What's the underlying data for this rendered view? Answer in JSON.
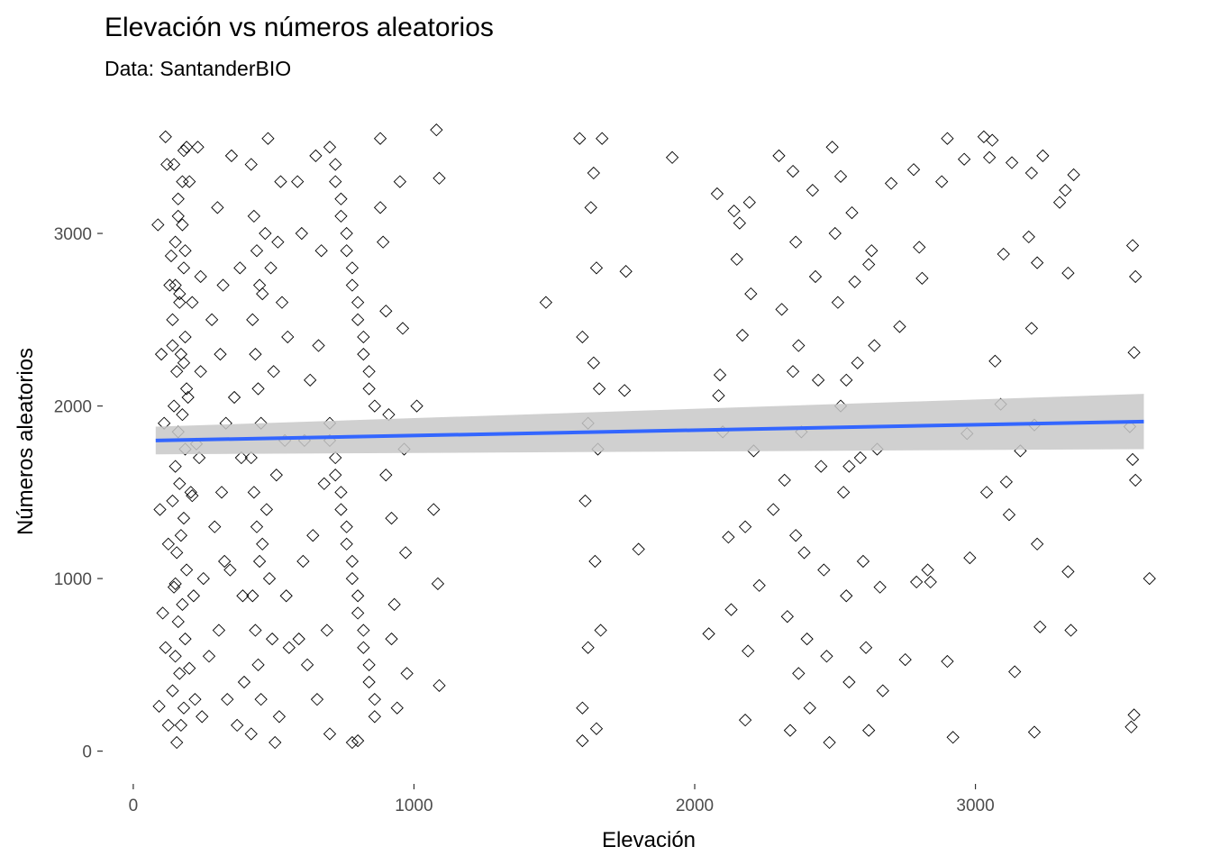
{
  "chart_data": {
    "type": "scatter",
    "title": "Elevación vs números aleatorios",
    "subtitle": "Data: SantanderBIO",
    "xlabel": "Elevación",
    "ylabel": "Números aleatorios",
    "xlim": [
      -250,
      3730
    ],
    "ylim": [
      -190,
      3700
    ],
    "xticks": [
      0,
      1000,
      2000,
      3000
    ],
    "xtick_labels": [
      "0",
      "1000",
      "2000",
      "3000"
    ],
    "yticks": [
      0,
      1000,
      2000,
      3000
    ],
    "ytick_labels": [
      "0",
      "1000",
      "2000",
      "3000"
    ],
    "grid": false,
    "legend": "none",
    "marker": "open diamond",
    "colors": {
      "points": "#000000",
      "fit_line": "#3366ff",
      "confidence_band": "#c8c8c8"
    },
    "trend": {
      "method": "linear",
      "x_start": 80,
      "x_end": 3600,
      "y_start": 1800,
      "y_end": 1910,
      "band_lower_start": 1720,
      "band_upper_start": 1880,
      "band_lower_end": 1750,
      "band_upper_end": 2070
    },
    "points": [
      [
        160,
        3200
      ],
      [
        175,
        3050
      ],
      [
        150,
        2950
      ],
      [
        180,
        2800
      ],
      [
        165,
        2650
      ],
      [
        140,
        2500
      ],
      [
        185,
        2400
      ],
      [
        170,
        2300
      ],
      [
        155,
        2200
      ],
      [
        190,
        2100
      ],
      [
        145,
        2000
      ],
      [
        175,
        1950
      ],
      [
        160,
        1850
      ],
      [
        185,
        1750
      ],
      [
        150,
        1650
      ],
      [
        165,
        1550
      ],
      [
        140,
        1450
      ],
      [
        180,
        1350
      ],
      [
        170,
        1250
      ],
      [
        155,
        1150
      ],
      [
        190,
        1050
      ],
      [
        145,
        950
      ],
      [
        175,
        850
      ],
      [
        160,
        750
      ],
      [
        185,
        650
      ],
      [
        150,
        550
      ],
      [
        165,
        450
      ],
      [
        140,
        350
      ],
      [
        180,
        250
      ],
      [
        170,
        150
      ],
      [
        155,
        50
      ],
      [
        190,
        3500
      ],
      [
        145,
        3400
      ],
      [
        175,
        3300
      ],
      [
        160,
        3100
      ],
      [
        185,
        2900
      ],
      [
        150,
        2700
      ],
      [
        165,
        2600
      ],
      [
        140,
        2350
      ],
      [
        180,
        2250
      ],
      [
        120,
        3400
      ],
      [
        130,
        2700
      ],
      [
        110,
        1900
      ],
      [
        125,
        1200
      ],
      [
        115,
        600
      ],
      [
        200,
        3300
      ],
      [
        210,
        2600
      ],
      [
        205,
        1500
      ],
      [
        215,
        900
      ],
      [
        220,
        300
      ],
      [
        230,
        3500
      ],
      [
        240,
        2200
      ],
      [
        235,
        1700
      ],
      [
        250,
        1000
      ],
      [
        245,
        200
      ],
      [
        100,
        2300
      ],
      [
        95,
        1400
      ],
      [
        105,
        800
      ],
      [
        88,
        3050
      ],
      [
        92,
        260
      ],
      [
        115,
        3560
      ],
      [
        125,
        150
      ],
      [
        180,
        3480
      ],
      [
        195,
        2050
      ],
      [
        210,
        1480
      ],
      [
        135,
        2870
      ],
      [
        150,
        970
      ],
      [
        200,
        480
      ],
      [
        225,
        1780
      ],
      [
        240,
        2750
      ],
      [
        300,
        3150
      ],
      [
        320,
        2700
      ],
      [
        310,
        2300
      ],
      [
        330,
        1900
      ],
      [
        315,
        1500
      ],
      [
        325,
        1100
      ],
      [
        305,
        700
      ],
      [
        335,
        300
      ],
      [
        280,
        2500
      ],
      [
        290,
        1300
      ],
      [
        270,
        550
      ],
      [
        350,
        3450
      ],
      [
        360,
        2050
      ],
      [
        345,
        1050
      ],
      [
        370,
        150
      ],
      [
        380,
        2800
      ],
      [
        385,
        1700
      ],
      [
        390,
        900
      ],
      [
        395,
        400
      ],
      [
        420,
        3400
      ],
      [
        430,
        3100
      ],
      [
        440,
        2900
      ],
      [
        450,
        2700
      ],
      [
        425,
        2500
      ],
      [
        435,
        2300
      ],
      [
        445,
        2100
      ],
      [
        455,
        1900
      ],
      [
        420,
        1700
      ],
      [
        430,
        1500
      ],
      [
        440,
        1300
      ],
      [
        450,
        1100
      ],
      [
        425,
        900
      ],
      [
        435,
        700
      ],
      [
        445,
        500
      ],
      [
        455,
        300
      ],
      [
        420,
        100
      ],
      [
        480,
        3550
      ],
      [
        490,
        2800
      ],
      [
        500,
        2200
      ],
      [
        510,
        1600
      ],
      [
        485,
        1000
      ],
      [
        495,
        650
      ],
      [
        505,
        50
      ],
      [
        470,
        3000
      ],
      [
        475,
        1400
      ],
      [
        530,
        2600
      ],
      [
        540,
        1800
      ],
      [
        545,
        900
      ],
      [
        550,
        2400
      ],
      [
        555,
        600
      ],
      [
        525,
        3300
      ],
      [
        520,
        200
      ],
      [
        460,
        2650
      ],
      [
        460,
        1200
      ],
      [
        515,
        2950
      ],
      [
        700,
        3500
      ],
      [
        720,
        3300
      ],
      [
        740,
        3100
      ],
      [
        760,
        2900
      ],
      [
        780,
        2700
      ],
      [
        800,
        2500
      ],
      [
        820,
        2300
      ],
      [
        840,
        2100
      ],
      [
        700,
        1900
      ],
      [
        720,
        1700
      ],
      [
        740,
        1500
      ],
      [
        760,
        1300
      ],
      [
        780,
        1100
      ],
      [
        800,
        900
      ],
      [
        820,
        700
      ],
      [
        840,
        500
      ],
      [
        860,
        300
      ],
      [
        700,
        100
      ],
      [
        720,
        3400
      ],
      [
        740,
        3200
      ],
      [
        760,
        3000
      ],
      [
        780,
        2800
      ],
      [
        800,
        2600
      ],
      [
        820,
        2400
      ],
      [
        840,
        2200
      ],
      [
        860,
        2000
      ],
      [
        700,
        1800
      ],
      [
        720,
        1600
      ],
      [
        740,
        1400
      ],
      [
        760,
        1200
      ],
      [
        780,
        1000
      ],
      [
        800,
        800
      ],
      [
        820,
        600
      ],
      [
        840,
        400
      ],
      [
        860,
        200
      ],
      [
        780,
        50
      ],
      [
        800,
        60
      ],
      [
        650,
        3450
      ],
      [
        660,
        2350
      ],
      [
        640,
        1250
      ],
      [
        655,
        300
      ],
      [
        670,
        2900
      ],
      [
        680,
        1550
      ],
      [
        690,
        700
      ],
      [
        600,
        3000
      ],
      [
        610,
        1800
      ],
      [
        620,
        500
      ],
      [
        630,
        2150
      ],
      [
        585,
        3300
      ],
      [
        590,
        650
      ],
      [
        605,
        1100
      ],
      [
        880,
        3550
      ],
      [
        890,
        2950
      ],
      [
        900,
        2550
      ],
      [
        910,
        1950
      ],
      [
        920,
        1350
      ],
      [
        930,
        850
      ],
      [
        940,
        250
      ],
      [
        950,
        3300
      ],
      [
        960,
        2450
      ],
      [
        965,
        1750
      ],
      [
        970,
        1150
      ],
      [
        975,
        450
      ],
      [
        880,
        3150
      ],
      [
        900,
        1600
      ],
      [
        920,
        650
      ],
      [
        1010,
        2000
      ],
      [
        1070,
        1400
      ],
      [
        1090,
        380
      ],
      [
        1080,
        3600
      ],
      [
        1090,
        3320
      ],
      [
        1085,
        970
      ],
      [
        1470,
        2600
      ],
      [
        1590,
        3550
      ],
      [
        1600,
        2400
      ],
      [
        1610,
        1450
      ],
      [
        1620,
        600
      ],
      [
        1600,
        250
      ],
      [
        1640,
        3350
      ],
      [
        1650,
        2800
      ],
      [
        1660,
        2100
      ],
      [
        1655,
        1750
      ],
      [
        1645,
        1100
      ],
      [
        1665,
        700
      ],
      [
        1650,
        130
      ],
      [
        1670,
        3550
      ],
      [
        1630,
        3150
      ],
      [
        1640,
        2250
      ],
      [
        1620,
        1900
      ],
      [
        1600,
        60
      ],
      [
        1755,
        2780
      ],
      [
        1750,
        2090
      ],
      [
        1800,
        1170
      ],
      [
        1920,
        3440
      ],
      [
        2050,
        680
      ],
      [
        2080,
        3230
      ],
      [
        2090,
        2180
      ],
      [
        2085,
        2060
      ],
      [
        2100,
        1850
      ],
      [
        2120,
        1240
      ],
      [
        2130,
        820
      ],
      [
        2140,
        3130
      ],
      [
        2150,
        2850
      ],
      [
        2160,
        3060
      ],
      [
        2170,
        2410
      ],
      [
        2180,
        1300
      ],
      [
        2190,
        580
      ],
      [
        2195,
        3180
      ],
      [
        2200,
        2650
      ],
      [
        2210,
        1740
      ],
      [
        2230,
        960
      ],
      [
        2180,
        180
      ],
      [
        2280,
        1400
      ],
      [
        2300,
        3450
      ],
      [
        2310,
        2560
      ],
      [
        2320,
        1570
      ],
      [
        2330,
        780
      ],
      [
        2340,
        120
      ],
      [
        2350,
        3360
      ],
      [
        2360,
        2950
      ],
      [
        2370,
        2350
      ],
      [
        2380,
        1850
      ],
      [
        2390,
        1150
      ],
      [
        2400,
        650
      ],
      [
        2410,
        250
      ],
      [
        2350,
        2200
      ],
      [
        2360,
        1250
      ],
      [
        2370,
        450
      ],
      [
        2420,
        3250
      ],
      [
        2430,
        2750
      ],
      [
        2440,
        2150
      ],
      [
        2450,
        1650
      ],
      [
        2460,
        1050
      ],
      [
        2470,
        550
      ],
      [
        2480,
        50
      ],
      [
        2490,
        3500
      ],
      [
        2500,
        3000
      ],
      [
        2510,
        2600
      ],
      [
        2520,
        2000
      ],
      [
        2530,
        1500
      ],
      [
        2540,
        900
      ],
      [
        2550,
        400
      ],
      [
        2560,
        3120
      ],
      [
        2570,
        2720
      ],
      [
        2580,
        2250
      ],
      [
        2590,
        1700
      ],
      [
        2600,
        1100
      ],
      [
        2610,
        600
      ],
      [
        2620,
        120
      ],
      [
        2630,
        2900
      ],
      [
        2640,
        2350
      ],
      [
        2650,
        1750
      ],
      [
        2660,
        950
      ],
      [
        2670,
        350
      ],
      [
        2520,
        3330
      ],
      [
        2540,
        2150
      ],
      [
        2550,
        1650
      ],
      [
        2620,
        2820
      ],
      [
        2700,
        3290
      ],
      [
        2730,
        2460
      ],
      [
        2750,
        530
      ],
      [
        2780,
        3370
      ],
      [
        2800,
        2920
      ],
      [
        2810,
        2740
      ],
      [
        2830,
        1050
      ],
      [
        2840,
        980
      ],
      [
        2790,
        980
      ],
      [
        2900,
        3550
      ],
      [
        2880,
        3300
      ],
      [
        2900,
        520
      ],
      [
        2920,
        80
      ],
      [
        2960,
        3430
      ],
      [
        2970,
        1840
      ],
      [
        2980,
        1120
      ],
      [
        3030,
        3560
      ],
      [
        3060,
        3540
      ],
      [
        3050,
        3440
      ],
      [
        3070,
        2260
      ],
      [
        3040,
        1500
      ],
      [
        3090,
        2010
      ],
      [
        3110,
        1560
      ],
      [
        3120,
        1370
      ],
      [
        3100,
        2880
      ],
      [
        3130,
        3410
      ],
      [
        3140,
        460
      ],
      [
        3160,
        1740
      ],
      [
        3190,
        2980
      ],
      [
        3200,
        2450
      ],
      [
        3210,
        1890
      ],
      [
        3220,
        1200
      ],
      [
        3230,
        720
      ],
      [
        3200,
        3350
      ],
      [
        3220,
        2830
      ],
      [
        3240,
        3450
      ],
      [
        3210,
        110
      ],
      [
        3300,
        3180
      ],
      [
        3320,
        3250
      ],
      [
        3330,
        1040
      ],
      [
        3340,
        700
      ],
      [
        3350,
        3340
      ],
      [
        3330,
        2770
      ],
      [
        3560,
        2930
      ],
      [
        3570,
        2750
      ],
      [
        3565,
        2310
      ],
      [
        3550,
        1880
      ],
      [
        3560,
        1690
      ],
      [
        3570,
        1570
      ],
      [
        3565,
        210
      ],
      [
        3555,
        140
      ],
      [
        3620,
        1000
      ]
    ]
  }
}
